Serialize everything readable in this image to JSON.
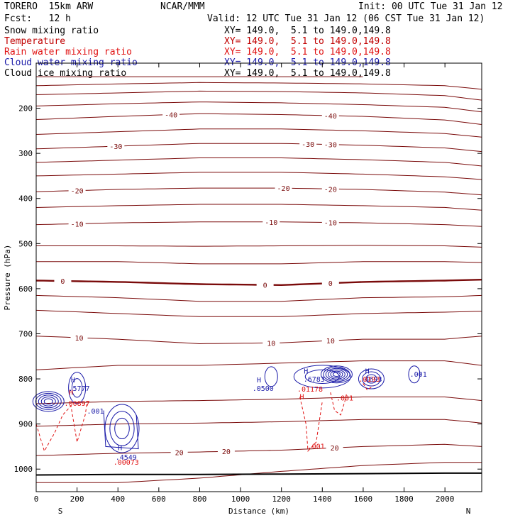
{
  "header": {
    "title_left": "TORERO  15km ARW",
    "center": "NCAR/MMM",
    "init": "Init: 00 UTC Tue 31 Jan 12",
    "fcst": "Fcst:   12 h",
    "valid": "Valid: 12 UTC Tue 31 Jan 12 (06 CST Tue 31 Jan 12)"
  },
  "legend": [
    {
      "label": "Snow mixing ratio",
      "xy": "XY= 149.0,  5.1 to 149.0,149.8",
      "color": "#000000"
    },
    {
      "label": "Temperature",
      "xy": "XY= 149.0,  5.1 to 149.0,149.8",
      "color": "#c00000"
    },
    {
      "label": "Rain water mixing ratio",
      "xy": "XY= 149.0,  5.1 to 149.0,149.8",
      "color": "#c00000"
    },
    {
      "label": "Cloud water mixing ratio",
      "xy": "XY= 149.0,  5.1 to 149.0,149.8",
      "color": "#1a1aa8"
    },
    {
      "label": "Cloud ice mixing ratio",
      "xy": "XY= 149.0,  5.1 to 149.0,149.8",
      "color": "#000000"
    }
  ],
  "chart_data": {
    "type": "contour-cross-section",
    "xlabel": "Distance (km)",
    "ylabel": "Pressure (hPa)",
    "xlim": [
      0,
      2180
    ],
    "ylim": [
      1050,
      100
    ],
    "xticks": [
      0,
      200,
      400,
      600,
      800,
      1000,
      1200,
      1400,
      1600,
      1800,
      2000
    ],
    "yticks": [
      200,
      300,
      400,
      500,
      600,
      700,
      800,
      900,
      1000
    ],
    "endpoint_left": "S",
    "endpoint_right": "N",
    "temperature_isotherms": [
      {
        "p": [
          130,
          130,
          130,
          130,
          130
        ]
      },
      {
        "p": [
          150,
          146,
          143,
          144,
          146,
          150,
          158
        ]
      },
      {
        "p": [
          170,
          166,
          162,
          163,
          166,
          172,
          182
        ]
      },
      {
        "p": [
          195,
          190,
          186,
          188,
          192,
          198,
          208
        ]
      },
      {
        "p": [
          225,
          218,
          212,
          214,
          218,
          226,
          236
        ],
        "labels": [
          {
            "x": 660,
            "text": "-40"
          },
          {
            "x": 1440,
            "text": "-40"
          }
        ]
      },
      {
        "p": [
          258,
          252,
          246,
          246,
          250,
          256,
          264
        ]
      },
      {
        "p": [
          290,
          284,
          278,
          278,
          282,
          288,
          296
        ],
        "labels": [
          {
            "x": 390,
            "text": "-30"
          },
          {
            "x": 1330,
            "text": "-30"
          },
          {
            "x": 1440,
            "text": "-30"
          }
        ]
      },
      {
        "p": [
          320,
          315,
          310,
          310,
          314,
          320,
          328
        ]
      },
      {
        "p": [
          350,
          346,
          342,
          342,
          346,
          352,
          358
        ]
      },
      {
        "p": [
          385,
          380,
          377,
          377,
          380,
          386,
          392
        ],
        "labels": [
          {
            "x": 200,
            "text": "-20"
          },
          {
            "x": 1210,
            "text": "-20"
          },
          {
            "x": 1440,
            "text": "-20"
          }
        ]
      },
      {
        "p": [
          420,
          416,
          413,
          413,
          416,
          420,
          426
        ]
      },
      {
        "p": [
          458,
          454,
          452,
          452,
          454,
          458,
          462
        ],
        "labels": [
          {
            "x": 200,
            "text": "-10"
          },
          {
            "x": 1150,
            "text": "-10"
          },
          {
            "x": 1440,
            "text": "-10"
          }
        ]
      },
      {
        "p": [
          505,
          505,
          506,
          505,
          504,
          505,
          508
        ]
      },
      {
        "p": [
          540,
          540,
          545,
          545,
          540,
          540,
          542
        ]
      },
      {
        "p": [
          582,
          585,
          590,
          592,
          585,
          582,
          580
        ],
        "labels": [
          {
            "x": 130,
            "text": "0"
          },
          {
            "x": 1120,
            "text": "0"
          },
          {
            "x": 1440,
            "text": "0"
          }
        ],
        "bold": true
      },
      {
        "p": [
          615,
          620,
          628,
          628,
          620,
          618,
          615
        ]
      },
      {
        "p": [
          648,
          655,
          662,
          662,
          655,
          652,
          650
        ]
      },
      {
        "p": [
          705,
          712,
          722,
          720,
          712,
          712,
          705
        ],
        "labels": [
          {
            "x": 210,
            "text": "10"
          },
          {
            "x": 1150,
            "text": "10"
          },
          {
            "x": 1440,
            "text": "10"
          }
        ]
      },
      {
        "p": [
          780,
          770,
          770,
          765,
          760,
          760,
          770
        ]
      },
      {
        "p": [
          855,
          850,
          848,
          845,
          840,
          840,
          848
        ]
      },
      {
        "p": [
          905,
          900,
          898,
          895,
          890,
          890,
          898
        ]
      },
      {
        "p": [
          970,
          965,
          962,
          958,
          950,
          945,
          950
        ],
        "labels": [
          {
            "x": 700,
            "text": "20"
          },
          {
            "x": 930,
            "text": "20"
          },
          {
            "x": 1460,
            "text": "20"
          }
        ]
      },
      {
        "p": [
          1030,
          1030,
          1020,
          1005,
          992,
          985,
          985
        ]
      }
    ],
    "isotherm_x": [
      0,
      400,
      800,
      1200,
      1600,
      2000,
      2180
    ],
    "surface_pressure": [
      1013,
      1012,
      1012,
      1011,
      1010,
      1009,
      1009
    ],
    "cloud_water_labels": [
      {
        "x": 180,
        "p": 808,
        "text": "H"
      },
      {
        "x": 210,
        "p": 827,
        "text": ".5777"
      },
      {
        "x": 290,
        "p": 877,
        "text": ".001"
      },
      {
        "x": 410,
        "p": 958,
        "text": "H"
      },
      {
        "x": 440,
        "p": 979,
        "text": ".4549"
      },
      {
        "x": 1090,
        "p": 808,
        "text": "H"
      },
      {
        "x": 1110,
        "p": 827,
        "text": ".0500"
      },
      {
        "x": 1320,
        "p": 788,
        "text": "H"
      },
      {
        "x": 1360,
        "p": 806,
        "text": ".6783"
      },
      {
        "x": 1620,
        "p": 788,
        "text": "H"
      },
      {
        "x": 1640,
        "p": 806,
        "text": ".4693"
      },
      {
        "x": 1870,
        "p": 795,
        "text": ".001"
      }
    ],
    "rain_water_labels": [
      {
        "x": 170,
        "p": 835,
        "text": "H"
      },
      {
        "x": 200,
        "p": 860,
        "text": ".00897"
      },
      {
        "x": 440,
        "p": 990,
        "text": ".00073"
      },
      {
        "x": 1300,
        "p": 845,
        "text": "H"
      },
      {
        "x": 1340,
        "p": 828,
        "text": ".01178"
      },
      {
        "x": 1510,
        "p": 848,
        "text": ".001"
      },
      {
        "x": 1370,
        "p": 955,
        "text": ".001"
      },
      {
        "x": 1630,
        "p": 806,
        "text": ".0193"
      }
    ]
  }
}
